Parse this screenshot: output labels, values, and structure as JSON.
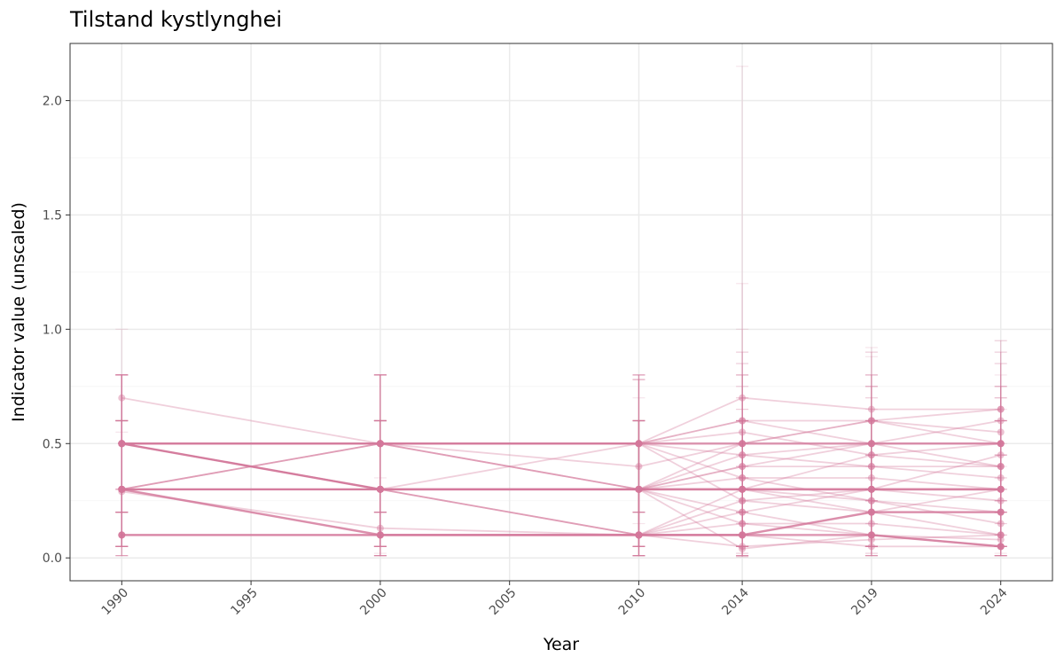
{
  "chart_data": {
    "type": "line",
    "title": "Tilstand kystlynghei",
    "xlabel": "Year",
    "ylabel": "Indicator value (unscaled)",
    "x_ticks": [
      "1990",
      "1995",
      "2000",
      "2005",
      "2010",
      "2014",
      "2019",
      "2024"
    ],
    "y_ticks": [
      "0.0",
      "0.5",
      "1.0",
      "1.5",
      "2.0"
    ],
    "xlim": [
      1988.0,
      2026.0
    ],
    "ylim": [
      -0.1,
      2.25
    ],
    "grid": true,
    "color": "#d4789b",
    "x": [
      1990,
      2000,
      2010,
      2014,
      2019,
      2024
    ],
    "series": [
      {
        "values": [
          0.5,
          0.5,
          0.5,
          0.5,
          0.5,
          0.5
        ],
        "lower": [
          0.2,
          0.2,
          0.2,
          0.2,
          0.25,
          0.25
        ],
        "upper": [
          0.8,
          0.8,
          0.78,
          0.8,
          0.75,
          0.75
        ],
        "emphasis": true
      },
      {
        "values": [
          0.5,
          0.5,
          0.5,
          0.6,
          0.5,
          0.4
        ],
        "lower": [
          0.2,
          0.2,
          0.2,
          0.3,
          0.25,
          0.15
        ],
        "upper": [
          0.8,
          0.8,
          0.78,
          0.9,
          0.8,
          0.7
        ]
      },
      {
        "values": [
          0.5,
          0.3,
          0.3,
          0.3,
          0.3,
          0.3
        ],
        "lower": [
          0.2,
          0.05,
          0.05,
          0.05,
          0.05,
          0.05
        ],
        "upper": [
          0.8,
          0.6,
          0.6,
          0.6,
          0.6,
          0.6
        ],
        "emphasis": true
      },
      {
        "values": [
          0.3,
          0.3,
          0.3,
          0.3,
          0.3,
          0.3
        ],
        "lower": [
          0.05,
          0.05,
          0.05,
          0.05,
          0.05,
          0.05
        ],
        "upper": [
          0.6,
          0.6,
          0.6,
          0.6,
          0.6,
          0.6
        ],
        "emphasis": true
      },
      {
        "values": [
          0.3,
          0.1,
          0.1,
          0.1,
          0.1,
          0.05
        ],
        "lower": [
          0.05,
          0.01,
          0.01,
          0.01,
          0.01,
          0.01
        ],
        "upper": [
          0.6,
          0.3,
          0.3,
          0.3,
          0.3,
          0.2
        ],
        "emphasis": true
      },
      {
        "values": [
          0.29,
          0.13,
          0.1,
          0.25,
          0.2,
          0.1
        ],
        "lower": [
          0.05,
          0.02,
          0.01,
          0.05,
          0.05,
          0.01
        ],
        "upper": [
          0.55,
          0.35,
          0.3,
          0.5,
          0.45,
          0.3
        ]
      },
      {
        "values": [
          0.1,
          0.1,
          0.1,
          0.1,
          0.2,
          0.2
        ],
        "lower": [
          0.01,
          0.01,
          0.01,
          0.01,
          0.05,
          0.05
        ],
        "upper": [
          0.3,
          0.3,
          0.3,
          0.35,
          0.45,
          0.45
        ],
        "emphasis": true
      },
      {
        "values": [
          0.7,
          0.5,
          0.4,
          0.5,
          0.6,
          0.5
        ],
        "lower": [
          0.3,
          0.2,
          0.15,
          0.2,
          0.3,
          0.2
        ],
        "upper": [
          1.0,
          0.8,
          0.7,
          0.85,
          0.9,
          0.85
        ]
      },
      {
        "values": [
          0.5,
          0.3,
          0.3,
          0.4,
          0.4,
          0.4
        ],
        "lower": [
          0.2,
          0.05,
          0.05,
          0.1,
          0.1,
          0.1
        ],
        "upper": [
          0.8,
          0.6,
          0.6,
          0.7,
          0.7,
          0.7
        ]
      },
      {
        "values": [
          0.3,
          0.3,
          0.3,
          0.04,
          0.1,
          0.05
        ],
        "lower": [
          0.05,
          0.05,
          0.05,
          0.005,
          0.01,
          0.01
        ],
        "upper": [
          0.6,
          0.6,
          0.6,
          2.15,
          0.3,
          0.2
        ]
      },
      {
        "values": [
          0.5,
          0.5,
          0.3,
          0.3,
          0.45,
          0.5
        ],
        "lower": [
          0.2,
          0.2,
          0.05,
          0.05,
          0.15,
          0.2
        ],
        "upper": [
          0.8,
          0.8,
          0.6,
          1.2,
          0.8,
          0.9
        ]
      },
      {
        "values": [
          0.3,
          0.5,
          0.5,
          0.7,
          0.65,
          0.65
        ],
        "lower": [
          0.05,
          0.2,
          0.2,
          0.4,
          0.35,
          0.35
        ],
        "upper": [
          0.6,
          0.8,
          0.8,
          1.0,
          0.92,
          0.95
        ]
      },
      {
        "values": [
          0.5,
          0.3,
          0.1,
          0.3,
          0.25,
          0.2
        ],
        "lower": [
          0.2,
          0.05,
          0.01,
          0.05,
          0.05,
          0.05
        ],
        "upper": [
          0.8,
          0.6,
          0.3,
          0.6,
          0.5,
          0.45
        ]
      },
      {
        "values": [
          0.3,
          0.5,
          0.5,
          0.45,
          0.4,
          0.35
        ],
        "lower": [
          0.05,
          0.2,
          0.2,
          0.15,
          0.1,
          0.1
        ],
        "upper": [
          0.6,
          0.8,
          0.8,
          0.75,
          0.7,
          0.65
        ]
      },
      {
        "values": [
          0.5,
          0.3,
          0.3,
          0.15,
          0.1,
          0.05
        ],
        "lower": [
          0.2,
          0.05,
          0.05,
          0.02,
          0.02,
          0.01
        ],
        "upper": [
          0.8,
          0.6,
          0.6,
          0.4,
          0.3,
          0.2
        ]
      },
      {
        "values": [
          0.3,
          0.3,
          0.1,
          0.2,
          0.3,
          0.25
        ],
        "lower": [
          0.05,
          0.05,
          0.01,
          0.05,
          0.05,
          0.05
        ],
        "upper": [
          0.6,
          0.6,
          0.3,
          0.45,
          0.6,
          0.5
        ]
      },
      {
        "values": [
          0.1,
          0.1,
          0.1,
          0.1,
          0.05,
          0.05
        ],
        "lower": [
          0.01,
          0.01,
          0.01,
          0.01,
          0.01,
          0.01
        ],
        "upper": [
          0.3,
          0.3,
          0.3,
          0.3,
          0.2,
          0.2
        ]
      },
      {
        "values": [
          0.5,
          0.5,
          0.5,
          0.25,
          0.3,
          0.45
        ],
        "lower": [
          0.2,
          0.2,
          0.2,
          0.05,
          0.05,
          0.15
        ],
        "upper": [
          0.8,
          0.8,
          0.8,
          0.5,
          0.6,
          0.75
        ]
      },
      {
        "values": [
          0.3,
          0.3,
          0.3,
          0.5,
          0.6,
          0.55
        ],
        "lower": [
          0.05,
          0.05,
          0.05,
          0.2,
          0.3,
          0.25
        ],
        "upper": [
          0.6,
          0.6,
          0.6,
          0.8,
          0.88,
          0.85
        ]
      },
      {
        "values": [
          0.5,
          0.5,
          0.3,
          0.35,
          0.35,
          0.3
        ],
        "lower": [
          0.2,
          0.2,
          0.05,
          0.1,
          0.1,
          0.05
        ],
        "upper": [
          0.8,
          0.8,
          0.6,
          0.65,
          0.65,
          0.6
        ]
      },
      {
        "values": [
          0.3,
          0.1,
          0.1,
          0.15,
          0.15,
          0.1
        ],
        "lower": [
          0.05,
          0.01,
          0.01,
          0.02,
          0.02,
          0.01
        ],
        "upper": [
          0.6,
          0.3,
          0.3,
          0.4,
          0.4,
          0.3
        ]
      },
      {
        "values": [
          0.5,
          0.3,
          0.3,
          0.4,
          0.5,
          0.6
        ],
        "lower": [
          0.2,
          0.05,
          0.05,
          0.1,
          0.2,
          0.3
        ],
        "upper": [
          0.8,
          0.6,
          0.6,
          0.7,
          0.8,
          0.9
        ]
      },
      {
        "values": [
          0.3,
          0.3,
          0.5,
          0.55,
          0.45,
          0.4
        ],
        "lower": [
          0.05,
          0.05,
          0.2,
          0.25,
          0.15,
          0.1
        ],
        "upper": [
          0.6,
          0.6,
          0.8,
          0.85,
          0.75,
          0.7
        ]
      },
      {
        "values": [
          0.5,
          0.5,
          0.3,
          0.2,
          0.1,
          0.08
        ],
        "lower": [
          0.2,
          0.2,
          0.05,
          0.05,
          0.01,
          0.01
        ],
        "upper": [
          0.8,
          0.8,
          0.6,
          0.45,
          0.3,
          0.25
        ]
      },
      {
        "values": [
          0.3,
          0.5,
          0.5,
          0.6,
          0.6,
          0.65
        ],
        "lower": [
          0.05,
          0.2,
          0.2,
          0.3,
          0.3,
          0.35
        ],
        "upper": [
          0.6,
          0.8,
          0.8,
          0.9,
          0.9,
          0.95
        ]
      },
      {
        "values": [
          0.1,
          0.1,
          0.1,
          0.05,
          0.08,
          0.1
        ],
        "lower": [
          0.01,
          0.01,
          0.01,
          0.005,
          0.01,
          0.01
        ],
        "upper": [
          0.3,
          0.3,
          0.3,
          0.2,
          0.25,
          0.3
        ]
      },
      {
        "values": [
          0.5,
          0.3,
          0.3,
          0.3,
          0.2,
          0.2
        ],
        "lower": [
          0.2,
          0.05,
          0.05,
          0.05,
          0.05,
          0.05
        ],
        "upper": [
          0.8,
          0.6,
          0.6,
          0.6,
          0.45,
          0.45
        ]
      },
      {
        "values": [
          0.3,
          0.3,
          0.3,
          0.45,
          0.5,
          0.5
        ],
        "lower": [
          0.05,
          0.05,
          0.05,
          0.15,
          0.2,
          0.2
        ],
        "upper": [
          0.6,
          0.6,
          0.6,
          0.75,
          0.8,
          0.8
        ]
      },
      {
        "values": [
          0.5,
          0.5,
          0.5,
          0.35,
          0.25,
          0.15
        ],
        "lower": [
          0.2,
          0.2,
          0.2,
          0.1,
          0.05,
          0.02
        ],
        "upper": [
          0.8,
          0.8,
          0.8,
          0.65,
          0.5,
          0.4
        ]
      },
      {
        "values": [
          0.3,
          0.3,
          0.1,
          0.1,
          0.2,
          0.3
        ],
        "lower": [
          0.05,
          0.05,
          0.01,
          0.01,
          0.05,
          0.05
        ],
        "upper": [
          0.6,
          0.6,
          0.3,
          0.3,
          0.45,
          0.6
        ]
      }
    ]
  }
}
